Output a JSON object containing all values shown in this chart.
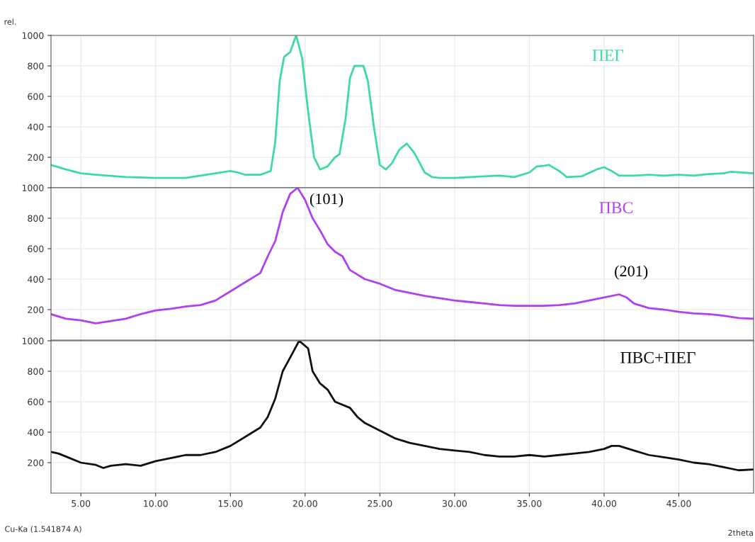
{
  "chart_data": [
    {
      "type": "line",
      "ylabel": "rel.",
      "tick_labels": "y",
      "grid": true,
      "xlim": [
        3,
        50
      ],
      "ylim": [
        0,
        1000
      ],
      "yticks": [
        200,
        400,
        600,
        800,
        1000
      ],
      "xticks": [
        {
          "value": 5,
          "label": null
        },
        {
          "value": 10,
          "label": null
        },
        {
          "value": 15,
          "label": null
        },
        {
          "value": 20,
          "label": null
        },
        {
          "value": 25,
          "label": null
        },
        {
          "value": 30,
          "label": null
        },
        {
          "value": 35,
          "label": null
        },
        {
          "value": 40,
          "label": null
        },
        {
          "value": 45,
          "label": null
        }
      ],
      "series": [
        {
          "name": "ПЕГ",
          "color": "#3ddc9c",
          "x": [
            3,
            4,
            5,
            6,
            8,
            10,
            12,
            13,
            14,
            15,
            15.5,
            16,
            17,
            17.7,
            18,
            18.3,
            18.6,
            19,
            19.4,
            19.8,
            20.2,
            20.6,
            21,
            21.5,
            22,
            22.3,
            22.7,
            23,
            23.3,
            23.9,
            24.2,
            24.6,
            25,
            25.4,
            25.8,
            26.3,
            26.8,
            27.3,
            28,
            28.5,
            29,
            30,
            32,
            33,
            34,
            35,
            35.5,
            36,
            36.3,
            37,
            37.5,
            38.5,
            39.5,
            40,
            40.5,
            41,
            42,
            43,
            44,
            45,
            46,
            47,
            48,
            48.5,
            50
          ],
          "values": [
            150,
            120,
            95,
            85,
            70,
            65,
            65,
            80,
            95,
            110,
            100,
            85,
            85,
            110,
            300,
            700,
            860,
            890,
            1000,
            850,
            500,
            200,
            120,
            140,
            200,
            220,
            450,
            720,
            800,
            800,
            700,
            400,
            150,
            120,
            160,
            250,
            290,
            230,
            100,
            70,
            65,
            65,
            75,
            80,
            70,
            100,
            140,
            145,
            150,
            110,
            70,
            75,
            120,
            135,
            110,
            80,
            80,
            85,
            80,
            85,
            80,
            90,
            95,
            105,
            95
          ]
        }
      ]
    },
    {
      "type": "line",
      "tick_labels": "y",
      "grid": true,
      "xlim": [
        3,
        50
      ],
      "ylim": [
        0,
        1000
      ],
      "yticks": [
        200,
        400,
        600,
        800,
        1000
      ],
      "xticks": [
        {
          "value": 5,
          "label": null
        },
        {
          "value": 10,
          "label": null
        },
        {
          "value": 15,
          "label": null
        },
        {
          "value": 20,
          "label": null
        },
        {
          "value": 25,
          "label": null
        },
        {
          "value": 30,
          "label": null
        },
        {
          "value": 35,
          "label": null
        },
        {
          "value": 40,
          "label": null
        },
        {
          "value": 45,
          "label": null
        }
      ],
      "annotations": [
        {
          "text": "(101)",
          "x": 19.5,
          "y": 1000
        },
        {
          "text": "(201)",
          "x": 41,
          "y": 300
        }
      ],
      "series": [
        {
          "name": "ПВС",
          "color": "#b040f0",
          "x": [
            3,
            4,
            5,
            6,
            7,
            8,
            9,
            10,
            11,
            12,
            13,
            14,
            15,
            16,
            17,
            17.5,
            18,
            18.5,
            19,
            19.5,
            20,
            20.5,
            21,
            21.5,
            22,
            22.5,
            23,
            24,
            25,
            26,
            27,
            28,
            29,
            30,
            31,
            32,
            33,
            34,
            35,
            36,
            37,
            38,
            39,
            40,
            41,
            41.5,
            42,
            43,
            44,
            45,
            46,
            47,
            48,
            49,
            50
          ],
          "values": [
            170,
            140,
            130,
            110,
            125,
            140,
            170,
            195,
            205,
            220,
            230,
            260,
            320,
            380,
            440,
            550,
            650,
            840,
            960,
            1000,
            920,
            800,
            720,
            630,
            580,
            550,
            460,
            400,
            370,
            330,
            310,
            290,
            275,
            260,
            250,
            240,
            230,
            225,
            225,
            225,
            230,
            240,
            260,
            280,
            300,
            280,
            240,
            210,
            200,
            185,
            175,
            170,
            160,
            145,
            140
          ]
        }
      ]
    },
    {
      "type": "line",
      "xlabel": "2theta",
      "grid": true,
      "xlim": [
        3,
        50
      ],
      "ylim": [
        0,
        1000
      ],
      "yticks": [
        200,
        400,
        600,
        800,
        1000
      ],
      "xticks": [
        {
          "value": 5,
          "label": "5.00"
        },
        {
          "value": 10,
          "label": "10.00"
        },
        {
          "value": 15,
          "label": "15.00"
        },
        {
          "value": 20,
          "label": "20.00"
        },
        {
          "value": 25,
          "label": "25.00"
        },
        {
          "value": 30,
          "label": "30.00"
        },
        {
          "value": 35,
          "label": "35.00"
        },
        {
          "value": 40,
          "label": "40.00"
        },
        {
          "value": 45,
          "label": "45.00"
        }
      ],
      "annotations": [
        "Cu-Ka (1.541874 A)"
      ],
      "series": [
        {
          "name": "ПВС+ПЕГ",
          "color": "#111111",
          "x": [
            3,
            3.5,
            4,
            5,
            6,
            6.5,
            7,
            8,
            9,
            10,
            11,
            12,
            13,
            14,
            15,
            16,
            17,
            17.5,
            18,
            18.5,
            19,
            19.6,
            20.2,
            20.5,
            21,
            21.5,
            22,
            23,
            23.5,
            24,
            25,
            26,
            27,
            28,
            29,
            30,
            31,
            32,
            33,
            34,
            35,
            36,
            37,
            38,
            39,
            40,
            40.5,
            41,
            42,
            43,
            44,
            45,
            46,
            47,
            48,
            49,
            50
          ],
          "values": [
            270,
            260,
            240,
            200,
            185,
            165,
            180,
            190,
            180,
            210,
            230,
            250,
            250,
            270,
            310,
            370,
            430,
            500,
            620,
            800,
            890,
            1000,
            950,
            800,
            720,
            680,
            600,
            560,
            500,
            460,
            410,
            360,
            330,
            310,
            290,
            280,
            270,
            250,
            240,
            240,
            250,
            240,
            250,
            260,
            270,
            290,
            310,
            310,
            280,
            250,
            235,
            220,
            200,
            190,
            170,
            150,
            155
          ]
        }
      ]
    }
  ]
}
